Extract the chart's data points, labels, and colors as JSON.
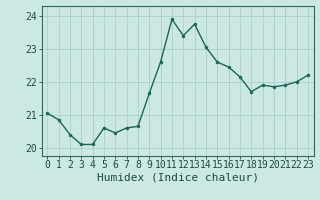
{
  "x": [
    0,
    1,
    2,
    3,
    4,
    5,
    6,
    7,
    8,
    9,
    10,
    11,
    12,
    13,
    14,
    15,
    16,
    17,
    18,
    19,
    20,
    21,
    22,
    23
  ],
  "y": [
    21.05,
    20.85,
    20.4,
    20.1,
    20.1,
    20.6,
    20.45,
    20.6,
    20.65,
    21.65,
    22.6,
    23.9,
    23.4,
    23.75,
    23.05,
    22.6,
    22.45,
    22.15,
    21.7,
    21.9,
    21.85,
    21.9,
    22.0,
    22.2
  ],
  "line_color": "#1a7a6a",
  "marker": "o",
  "marker_size": 2.0,
  "linewidth": 1.0,
  "xlabel": "Humidex (Indice chaleur)",
  "xlim": [
    -0.5,
    23.5
  ],
  "ylim": [
    19.75,
    24.3
  ],
  "yticks": [
    20,
    21,
    22,
    23,
    24
  ],
  "xticks": [
    0,
    1,
    2,
    3,
    4,
    5,
    6,
    7,
    8,
    9,
    10,
    11,
    12,
    13,
    14,
    15,
    16,
    17,
    18,
    19,
    20,
    21,
    22,
    23
  ],
  "bg_color": "#cce8e4",
  "grid_color": "#aacfca",
  "spine_color": "#336655",
  "line_dark": "#1a6655",
  "label_color": "#1a4a42",
  "xlabel_fontsize": 8,
  "tick_fontsize": 7
}
